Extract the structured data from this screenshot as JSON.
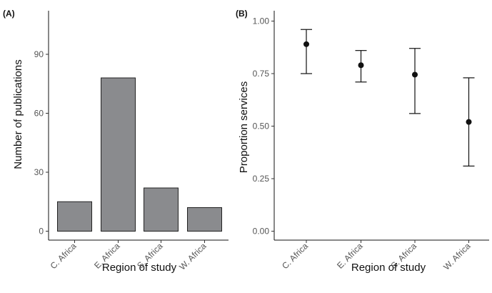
{
  "chart_data": [
    {
      "panel": "(A)",
      "type": "bar",
      "categories": [
        "C. Africa",
        "E. Africa",
        "S. Africa",
        "W. Africa"
      ],
      "values": [
        15,
        78,
        22,
        12
      ],
      "xlabel": "Region of study",
      "ylabel": "Number of publications",
      "ylim": [
        0,
        100
      ],
      "yticks": [
        "0",
        "30",
        "60",
        "90"
      ],
      "grid": false,
      "bar_color": "#8a8b8e"
    },
    {
      "panel": "(B)",
      "type": "scatter",
      "categories": [
        "C. Africa",
        "E. Africa",
        "S. Africa",
        "W. Africa"
      ],
      "values": [
        0.89,
        0.79,
        0.745,
        0.52
      ],
      "lower": [
        0.75,
        0.71,
        0.56,
        0.31
      ],
      "upper": [
        0.96,
        0.86,
        0.87,
        0.73
      ],
      "xlabel": "Region of study",
      "ylabel": "Proportion services",
      "ylim": [
        0,
        1.05
      ],
      "yticks": [
        "0.00",
        "0.25",
        "0.50",
        "0.75",
        "1.00"
      ],
      "grid": false,
      "error_bars": true
    }
  ]
}
